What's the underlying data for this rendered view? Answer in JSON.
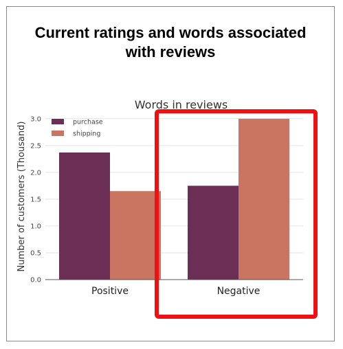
{
  "slide": {
    "title_line1": "Current ratings and words associated",
    "title_line2": "with reviews"
  },
  "chart_data": {
    "type": "bar",
    "title": "Words in reviews",
    "xlabel": "",
    "ylabel": "Number of customers (Thousand)",
    "categories": [
      "Positive",
      "Negative"
    ],
    "series": [
      {
        "name": "purchase",
        "values": [
          2.37,
          1.75
        ],
        "color": "#6b2f55"
      },
      {
        "name": "shipping",
        "values": [
          1.65,
          3.0
        ],
        "color": "#c97561"
      }
    ],
    "ylim": [
      0,
      3.1
    ],
    "yticks": [
      "0.0",
      "0.5",
      "1.0",
      "1.5",
      "2.0",
      "2.5",
      "3.0"
    ],
    "grid": "horizontal",
    "legend": "top-left",
    "highlight": {
      "category": "Negative",
      "color": "#ee1111"
    }
  }
}
